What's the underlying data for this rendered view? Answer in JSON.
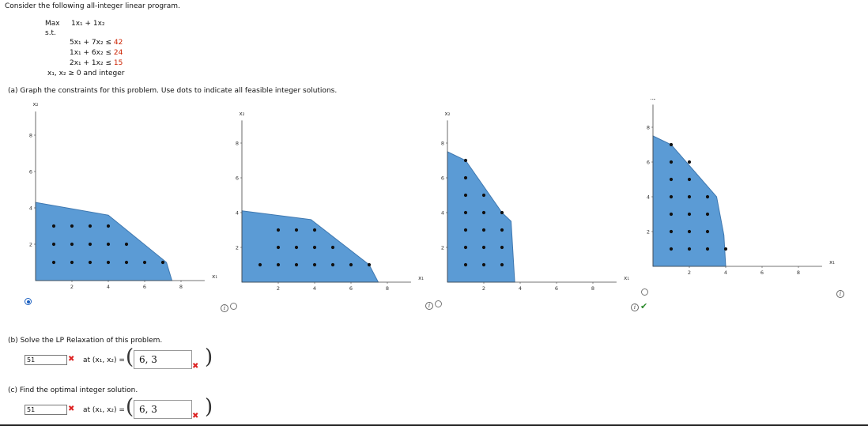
{
  "problem": {
    "intro": "Consider the following all-integer linear program.",
    "max_label": "Max",
    "objective": "1x₁ + 1x₂",
    "st_label": "s.t.",
    "constraints": [
      {
        "lhs": "5x₁ + 7x₂ ≤",
        "rhs": "42"
      },
      {
        "lhs": "1x₁ + 6x₂ ≤",
        "rhs": "24"
      },
      {
        "lhs": "2x₁ + 1x₂ ≤",
        "rhs": "15"
      }
    ],
    "nonneg": "x₁, x₂ ≥ 0 and integer"
  },
  "part_a": {
    "prompt": "(a)  Graph the constraints for this problem. Use dots to indicate all feasible integer solutions."
  },
  "graphs": [
    {
      "selected": true,
      "polygon": [
        [
          0,
          4.3
        ],
        [
          4,
          3.6
        ],
        [
          7.2,
          1
        ],
        [
          7.5,
          0
        ],
        [
          0,
          0
        ]
      ],
      "dots": [
        [
          1,
          3
        ],
        [
          2,
          3
        ],
        [
          3,
          3
        ],
        [
          4,
          3
        ],
        [
          1,
          2
        ],
        [
          2,
          2
        ],
        [
          3,
          2
        ],
        [
          4,
          2
        ],
        [
          5,
          2
        ],
        [
          1,
          1
        ],
        [
          2,
          1
        ],
        [
          3,
          1
        ],
        [
          4,
          1
        ],
        [
          5,
          1
        ],
        [
          6,
          1
        ],
        [
          7,
          1
        ]
      ]
    },
    {
      "selected": false,
      "polygon": [
        [
          0,
          4.1
        ],
        [
          3.8,
          3.6
        ],
        [
          7,
          1
        ],
        [
          7.5,
          0
        ],
        [
          0,
          0
        ]
      ],
      "dots": [
        [
          2,
          3
        ],
        [
          3,
          3
        ],
        [
          4,
          3
        ],
        [
          2,
          2
        ],
        [
          3,
          2
        ],
        [
          4,
          2
        ],
        [
          5,
          2
        ],
        [
          1,
          1
        ],
        [
          2,
          1
        ],
        [
          3,
          1
        ],
        [
          4,
          1
        ],
        [
          5,
          1
        ],
        [
          6,
          1
        ],
        [
          7,
          1
        ]
      ]
    },
    {
      "selected": false,
      "polygon": [
        [
          0,
          7.5
        ],
        [
          1,
          7
        ],
        [
          3,
          4
        ],
        [
          3.5,
          3.5
        ],
        [
          3.7,
          0
        ],
        [
          0,
          0
        ]
      ],
      "dots": [
        [
          1,
          7
        ],
        [
          1,
          6
        ],
        [
          1,
          5
        ],
        [
          2,
          5
        ],
        [
          3,
          4
        ],
        [
          1,
          4
        ],
        [
          2,
          4
        ],
        [
          1,
          3
        ],
        [
          2,
          3
        ],
        [
          3,
          3
        ],
        [
          1,
          2
        ],
        [
          2,
          2
        ],
        [
          3,
          2
        ],
        [
          1,
          1
        ],
        [
          2,
          1
        ],
        [
          3,
          1
        ]
      ]
    },
    {
      "selected": false,
      "correct": true,
      "polygon": [
        [
          0,
          7.5
        ],
        [
          1,
          7
        ],
        [
          3.5,
          4
        ],
        [
          3.9,
          1.8
        ],
        [
          4,
          0
        ],
        [
          0,
          0
        ]
      ],
      "dots": [
        [
          1,
          7
        ],
        [
          1,
          6
        ],
        [
          2,
          6
        ],
        [
          1,
          5
        ],
        [
          2,
          5
        ],
        [
          1,
          4
        ],
        [
          2,
          4
        ],
        [
          3,
          4
        ],
        [
          1,
          3
        ],
        [
          2,
          3
        ],
        [
          3,
          3
        ],
        [
          1,
          2
        ],
        [
          2,
          2
        ],
        [
          3,
          2
        ],
        [
          1,
          1
        ],
        [
          2,
          1
        ],
        [
          3,
          1
        ],
        [
          4,
          1
        ]
      ]
    }
  ],
  "axis": {
    "x_label": "x₁",
    "y_label": "x₂",
    "x_ticks": [
      "2",
      "4",
      "6",
      "8"
    ],
    "y_ticks": [
      "2",
      "4",
      "6",
      "8"
    ],
    "info_glyph": "i"
  },
  "part_b": {
    "prompt": "(b)  Solve the LP Relaxation of this problem.",
    "value": "51",
    "at_label": "at (x₁, x₂) =",
    "coord": "6, 3"
  },
  "part_c": {
    "prompt": "(c)  Find the optimal integer solution.",
    "value": "51",
    "at_label": "at (x₁, x₂) =",
    "coord": "6, 3"
  },
  "marks": {
    "wrong": "✖",
    "right": "✔"
  },
  "colors": {
    "fill": "#5b9bd5",
    "stroke": "#3f78b0",
    "dot": "#111111",
    "wrong": "#dd2222",
    "right": "#2e8b2e"
  }
}
